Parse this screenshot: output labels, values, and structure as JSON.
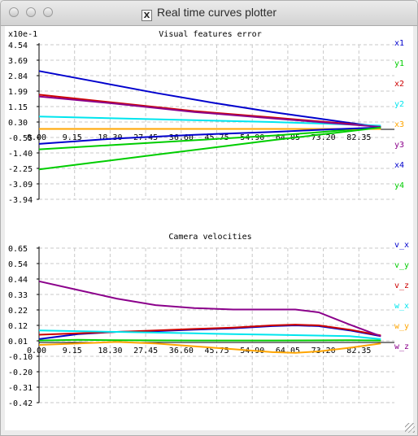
{
  "window": {
    "title": "Real time curves plotter",
    "app_icon": "x11-icon"
  },
  "plots": [
    {
      "title": "Visual features error",
      "scale_label": "x10e-1",
      "y_ticks": [
        "4.54",
        "3.69",
        "2.84",
        "1.99",
        "1.15",
        "0.30",
        "-0.55",
        "-1.40",
        "-2.25",
        "-3.09",
        "-3.94"
      ],
      "x_ticks": [
        "0.00",
        "9.15",
        "18.30",
        "27.45",
        "36.60",
        "45.75",
        "54.90",
        "64.05",
        "73.20",
        "82.35"
      ],
      "legend": [
        {
          "name": "x1",
          "color": "#0000cd"
        },
        {
          "name": "y1",
          "color": "#00cd00"
        },
        {
          "name": "x2",
          "color": "#cd0000"
        },
        {
          "name": "y2",
          "color": "#00e5ee"
        },
        {
          "name": "x3",
          "color": "#ffa500"
        },
        {
          "name": "y3",
          "color": "#8b008b"
        },
        {
          "name": "x4",
          "color": "#0000cd"
        },
        {
          "name": "y4",
          "color": "#00cd00"
        }
      ]
    },
    {
      "title": "Camera velocities",
      "scale_label": "",
      "y_ticks": [
        "0.65",
        "0.54",
        "0.44",
        "0.33",
        "0.22",
        "0.12",
        "0.01",
        "-0.10",
        "-0.20",
        "-0.31",
        "-0.42"
      ],
      "x_ticks": [
        "0.00",
        "9.15",
        "18.30",
        "27.45",
        "36.60",
        "45.75",
        "54.90",
        "64.05",
        "73.20",
        "82.35"
      ],
      "legend": [
        {
          "name": "v_x",
          "color": "#0000cd"
        },
        {
          "name": "v_y",
          "color": "#00cd00"
        },
        {
          "name": "v_z",
          "color": "#cd0000"
        },
        {
          "name": "w_x",
          "color": "#00e5ee"
        },
        {
          "name": "w_y",
          "color": "#ffa500"
        },
        {
          "name": "w_z",
          "color": "#8b008b"
        }
      ]
    }
  ],
  "chart_data": [
    {
      "type": "line",
      "title": "Visual features error",
      "ylabel": "x10e-1",
      "xlim": [
        0,
        91.5
      ],
      "ylim": [
        -3.94,
        4.54
      ],
      "grid": true,
      "legend_position": "right",
      "series": [
        {
          "name": "x1",
          "color": "#0000cd",
          "x": [
            0,
            15,
            30,
            45,
            60,
            70,
            80,
            88
          ],
          "y": [
            3.1,
            2.5,
            1.9,
            1.35,
            0.85,
            0.55,
            0.25,
            0.03
          ]
        },
        {
          "name": "y1",
          "color": "#00cd00",
          "x": [
            0,
            20,
            40,
            60,
            70,
            80,
            88
          ],
          "y": [
            -1.2,
            -0.95,
            -0.7,
            -0.45,
            -0.3,
            -0.12,
            0.02
          ]
        },
        {
          "name": "x2",
          "color": "#cd0000",
          "x": [
            0,
            20,
            40,
            60,
            75,
            88
          ],
          "y": [
            1.8,
            1.35,
            0.9,
            0.55,
            0.28,
            0.05
          ]
        },
        {
          "name": "y2",
          "color": "#00e5ee",
          "x": [
            0,
            20,
            40,
            60,
            75,
            88
          ],
          "y": [
            0.6,
            0.5,
            0.4,
            0.3,
            0.2,
            0.1
          ]
        },
        {
          "name": "x3",
          "color": "#ffa500",
          "x": [
            0,
            20,
            40,
            60,
            75,
            88
          ],
          "y": [
            -0.08,
            -0.08,
            -0.08,
            -0.08,
            -0.08,
            -0.08
          ]
        },
        {
          "name": "y3",
          "color": "#8b008b",
          "x": [
            0,
            20,
            40,
            60,
            75,
            88
          ],
          "y": [
            1.7,
            1.3,
            0.85,
            0.5,
            0.25,
            0.03
          ]
        },
        {
          "name": "x4",
          "color": "#0000cd",
          "x": [
            0,
            20,
            40,
            60,
            75,
            88
          ],
          "y": [
            -0.9,
            -0.6,
            -0.4,
            -0.25,
            -0.1,
            0.0
          ]
        },
        {
          "name": "y4",
          "color": "#00cd00",
          "x": [
            0,
            15,
            30,
            45,
            60,
            70,
            80,
            88
          ],
          "y": [
            -2.3,
            -1.9,
            -1.5,
            -1.1,
            -0.7,
            -0.45,
            -0.2,
            0.0
          ]
        }
      ]
    },
    {
      "type": "line",
      "title": "Camera velocities",
      "xlim": [
        0,
        91.5
      ],
      "ylim": [
        -0.42,
        0.65
      ],
      "grid": true,
      "legend_position": "right",
      "series": [
        {
          "name": "v_x",
          "color": "#0000cd",
          "x": [
            0,
            10,
            20,
            30,
            40,
            50,
            60,
            66,
            72,
            80,
            88
          ],
          "y": [
            0.02,
            0.055,
            0.07,
            0.075,
            0.085,
            0.095,
            0.11,
            0.115,
            0.11,
            0.08,
            0.04
          ]
        },
        {
          "name": "v_y",
          "color": "#00cd00",
          "x": [
            0,
            10,
            20,
            40,
            60,
            80,
            88
          ],
          "y": [
            0.01,
            0.015,
            0.012,
            0.01,
            0.01,
            0.012,
            0.01
          ]
        },
        {
          "name": "v_z",
          "color": "#cd0000",
          "x": [
            0,
            10,
            20,
            30,
            40,
            50,
            60,
            66,
            72,
            80,
            88
          ],
          "y": [
            0.05,
            0.06,
            0.07,
            0.08,
            0.09,
            0.1,
            0.115,
            0.12,
            0.115,
            0.085,
            0.045
          ]
        },
        {
          "name": "w_x",
          "color": "#00e5ee",
          "x": [
            0,
            10,
            20,
            30,
            40,
            50,
            60,
            70,
            80,
            88
          ],
          "y": [
            0.08,
            0.075,
            0.07,
            0.065,
            0.06,
            0.055,
            0.05,
            0.045,
            0.04,
            0.02
          ]
        },
        {
          "name": "w_y",
          "color": "#ffa500",
          "x": [
            0,
            10,
            20,
            30,
            40,
            50,
            60,
            66,
            72,
            80,
            88
          ],
          "y": [
            -0.02,
            -0.01,
            0.0,
            -0.01,
            -0.03,
            -0.05,
            -0.07,
            -0.075,
            -0.065,
            -0.04,
            -0.01
          ]
        },
        {
          "name": "w_z",
          "color": "#8b008b",
          "x": [
            0,
            10,
            20,
            30,
            40,
            50,
            60,
            66,
            72,
            80,
            88
          ],
          "y": [
            0.42,
            0.36,
            0.3,
            0.255,
            0.235,
            0.225,
            0.225,
            0.225,
            0.205,
            0.12,
            0.04
          ]
        }
      ]
    }
  ]
}
